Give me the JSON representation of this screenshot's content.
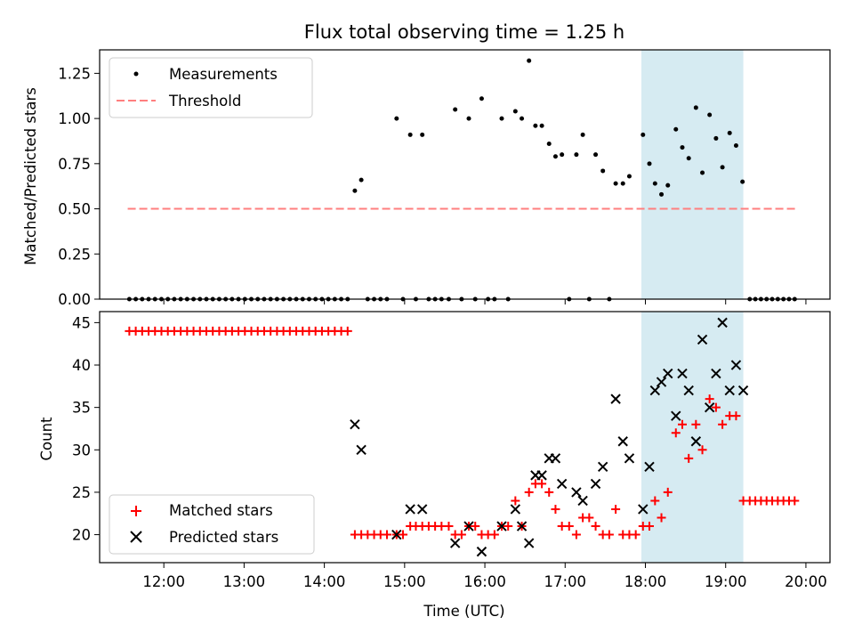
{
  "chart_data": [
    {
      "type": "scatter",
      "title": "Flux total observing time = 1.25 h",
      "xlabel": "",
      "ylabel": "Matched/Predicted stars",
      "ylim": [
        0,
        1.38
      ],
      "yticks": [
        "0.00",
        "0.25",
        "0.50",
        "0.75",
        "1.00",
        "1.25"
      ],
      "shaded_region": {
        "x_start": 17.95,
        "x_end": 19.22,
        "color": "#add8e6"
      },
      "legend": {
        "placement": "upper-left",
        "entries": [
          "Measurements",
          "Threshold"
        ]
      },
      "threshold": {
        "name": "Threshold",
        "x_start": 11.55,
        "x_end": 19.9,
        "value": 0.5,
        "color": "#ff7f7f"
      },
      "series": [
        {
          "name": "Measurements",
          "color": "#000000",
          "points": [
            [
              11.57,
              0
            ],
            [
              11.65,
              0
            ],
            [
              11.73,
              0
            ],
            [
              11.81,
              0
            ],
            [
              11.89,
              0
            ],
            [
              11.97,
              0
            ],
            [
              12.05,
              0
            ],
            [
              12.13,
              0
            ],
            [
              12.21,
              0
            ],
            [
              12.29,
              0
            ],
            [
              12.37,
              0
            ],
            [
              12.45,
              0
            ],
            [
              12.53,
              0
            ],
            [
              12.61,
              0
            ],
            [
              12.69,
              0
            ],
            [
              12.77,
              0
            ],
            [
              12.85,
              0
            ],
            [
              12.93,
              0
            ],
            [
              13.01,
              0
            ],
            [
              13.09,
              0
            ],
            [
              13.17,
              0
            ],
            [
              13.25,
              0
            ],
            [
              13.33,
              0
            ],
            [
              13.41,
              0
            ],
            [
              13.49,
              0
            ],
            [
              13.57,
              0
            ],
            [
              13.65,
              0
            ],
            [
              13.73,
              0
            ],
            [
              13.81,
              0
            ],
            [
              13.89,
              0
            ],
            [
              13.97,
              0
            ],
            [
              14.05,
              0
            ],
            [
              14.13,
              0
            ],
            [
              14.21,
              0
            ],
            [
              14.29,
              0
            ],
            [
              14.38,
              0.6
            ],
            [
              14.46,
              0.66
            ],
            [
              14.54,
              0
            ],
            [
              14.62,
              0
            ],
            [
              14.7,
              0
            ],
            [
              14.78,
              0
            ],
            [
              14.9,
              1.0
            ],
            [
              14.98,
              0
            ],
            [
              15.07,
              0.91
            ],
            [
              15.14,
              0
            ],
            [
              15.22,
              0.91
            ],
            [
              15.3,
              0
            ],
            [
              15.38,
              0
            ],
            [
              15.46,
              0
            ],
            [
              15.55,
              0
            ],
            [
              15.63,
              1.05
            ],
            [
              15.71,
              0
            ],
            [
              15.8,
              1.0
            ],
            [
              15.88,
              0
            ],
            [
              15.96,
              1.11
            ],
            [
              16.04,
              0
            ],
            [
              16.12,
              0
            ],
            [
              16.21,
              1.0
            ],
            [
              16.29,
              0
            ],
            [
              16.38,
              1.04
            ],
            [
              16.46,
              1.0
            ],
            [
              16.55,
              1.32
            ],
            [
              16.63,
              0.96
            ],
            [
              16.71,
              0.96
            ],
            [
              16.8,
              0.86
            ],
            [
              16.88,
              0.79
            ],
            [
              16.96,
              0.8
            ],
            [
              17.05,
              0
            ],
            [
              17.14,
              0.8
            ],
            [
              17.22,
              0.91
            ],
            [
              17.3,
              0
            ],
            [
              17.38,
              0.8
            ],
            [
              17.47,
              0.71
            ],
            [
              17.55,
              0
            ],
            [
              17.63,
              0.64
            ],
            [
              17.72,
              0.64
            ],
            [
              17.8,
              0.68
            ],
            [
              17.97,
              0.91
            ],
            [
              18.05,
              0.75
            ],
            [
              18.12,
              0.64
            ],
            [
              18.2,
              0.58
            ],
            [
              18.28,
              0.63
            ],
            [
              18.38,
              0.94
            ],
            [
              18.46,
              0.84
            ],
            [
              18.54,
              0.78
            ],
            [
              18.63,
              1.06
            ],
            [
              18.71,
              0.7
            ],
            [
              18.8,
              1.02
            ],
            [
              18.88,
              0.89
            ],
            [
              18.96,
              0.73
            ],
            [
              19.05,
              0.92
            ],
            [
              19.13,
              0.85
            ],
            [
              19.21,
              0.65
            ],
            [
              19.3,
              0
            ],
            [
              19.37,
              0
            ],
            [
              19.44,
              0
            ],
            [
              19.51,
              0
            ],
            [
              19.58,
              0
            ],
            [
              19.65,
              0
            ],
            [
              19.72,
              0
            ],
            [
              19.79,
              0
            ],
            [
              19.86,
              0
            ]
          ]
        }
      ]
    },
    {
      "type": "scatter",
      "title": "",
      "xlabel": "Time (UTC)",
      "ylabel": "Count",
      "ylim": [
        16.7,
        46.3
      ],
      "yticks": [
        "20",
        "25",
        "30",
        "35",
        "40",
        "45"
      ],
      "xlim": [
        11.2,
        20.3
      ],
      "xticks": [
        "12:00",
        "13:00",
        "14:00",
        "15:00",
        "16:00",
        "17:00",
        "18:00",
        "19:00",
        "20:00"
      ],
      "shaded_region": {
        "x_start": 17.95,
        "x_end": 19.22,
        "color": "#add8e6"
      },
      "legend": {
        "placement": "lower-left",
        "entries": [
          "Matched stars",
          "Predicted stars"
        ]
      },
      "series": [
        {
          "name": "Matched stars",
          "marker": "plus",
          "color": "#ff0000",
          "points": [
            [
              11.57,
              44
            ],
            [
              11.65,
              44
            ],
            [
              11.73,
              44
            ],
            [
              11.81,
              44
            ],
            [
              11.89,
              44
            ],
            [
              11.97,
              44
            ],
            [
              12.05,
              44
            ],
            [
              12.13,
              44
            ],
            [
              12.21,
              44
            ],
            [
              12.29,
              44
            ],
            [
              12.37,
              44
            ],
            [
              12.45,
              44
            ],
            [
              12.53,
              44
            ],
            [
              12.61,
              44
            ],
            [
              12.69,
              44
            ],
            [
              12.77,
              44
            ],
            [
              12.85,
              44
            ],
            [
              12.93,
              44
            ],
            [
              13.01,
              44
            ],
            [
              13.09,
              44
            ],
            [
              13.17,
              44
            ],
            [
              13.25,
              44
            ],
            [
              13.33,
              44
            ],
            [
              13.41,
              44
            ],
            [
              13.49,
              44
            ],
            [
              13.57,
              44
            ],
            [
              13.65,
              44
            ],
            [
              13.73,
              44
            ],
            [
              13.81,
              44
            ],
            [
              13.89,
              44
            ],
            [
              13.97,
              44
            ],
            [
              14.05,
              44
            ],
            [
              14.13,
              44
            ],
            [
              14.21,
              44
            ],
            [
              14.29,
              44
            ],
            [
              14.38,
              20
            ],
            [
              14.46,
              20
            ],
            [
              14.54,
              20
            ],
            [
              14.62,
              20
            ],
            [
              14.7,
              20
            ],
            [
              14.78,
              20
            ],
            [
              14.9,
              20
            ],
            [
              14.98,
              20
            ],
            [
              15.07,
              21
            ],
            [
              15.14,
              21
            ],
            [
              15.22,
              21
            ],
            [
              15.3,
              21
            ],
            [
              15.38,
              21
            ],
            [
              15.46,
              21
            ],
            [
              15.55,
              21
            ],
            [
              15.63,
              20
            ],
            [
              15.71,
              20
            ],
            [
              15.8,
              21
            ],
            [
              15.88,
              21
            ],
            [
              15.96,
              20
            ],
            [
              16.04,
              20
            ],
            [
              16.12,
              20
            ],
            [
              16.21,
              21
            ],
            [
              16.29,
              21
            ],
            [
              16.38,
              24
            ],
            [
              16.46,
              21
            ],
            [
              16.55,
              25
            ],
            [
              16.63,
              26
            ],
            [
              16.71,
              26
            ],
            [
              16.8,
              25
            ],
            [
              16.88,
              23
            ],
            [
              16.96,
              21
            ],
            [
              17.05,
              21
            ],
            [
              17.14,
              20
            ],
            [
              17.22,
              22
            ],
            [
              17.3,
              22
            ],
            [
              17.38,
              21
            ],
            [
              17.47,
              20
            ],
            [
              17.55,
              20
            ],
            [
              17.63,
              23
            ],
            [
              17.72,
              20
            ],
            [
              17.8,
              20
            ],
            [
              17.88,
              20
            ],
            [
              17.97,
              21
            ],
            [
              18.05,
              21
            ],
            [
              18.12,
              24
            ],
            [
              18.2,
              22
            ],
            [
              18.28,
              25
            ],
            [
              18.38,
              32
            ],
            [
              18.46,
              33
            ],
            [
              18.54,
              29
            ],
            [
              18.63,
              33
            ],
            [
              18.71,
              30
            ],
            [
              18.8,
              36
            ],
            [
              18.88,
              35
            ],
            [
              18.96,
              33
            ],
            [
              19.05,
              34
            ],
            [
              19.13,
              34
            ],
            [
              19.22,
              24
            ],
            [
              19.3,
              24
            ],
            [
              19.37,
              24
            ],
            [
              19.44,
              24
            ],
            [
              19.51,
              24
            ],
            [
              19.58,
              24
            ],
            [
              19.65,
              24
            ],
            [
              19.72,
              24
            ],
            [
              19.79,
              24
            ],
            [
              19.86,
              24
            ]
          ]
        },
        {
          "name": "Predicted stars",
          "marker": "x",
          "color": "#000000",
          "points": [
            [
              14.38,
              33
            ],
            [
              14.46,
              30
            ],
            [
              14.9,
              20
            ],
            [
              15.07,
              23
            ],
            [
              15.22,
              23
            ],
            [
              15.63,
              19
            ],
            [
              15.8,
              21
            ],
            [
              15.96,
              18
            ],
            [
              16.21,
              21
            ],
            [
              16.38,
              23
            ],
            [
              16.46,
              21
            ],
            [
              16.55,
              19
            ],
            [
              16.63,
              27
            ],
            [
              16.71,
              27
            ],
            [
              16.8,
              29
            ],
            [
              16.88,
              29
            ],
            [
              16.96,
              26
            ],
            [
              17.14,
              25
            ],
            [
              17.22,
              24
            ],
            [
              17.38,
              26
            ],
            [
              17.47,
              28
            ],
            [
              17.63,
              36
            ],
            [
              17.72,
              31
            ],
            [
              17.8,
              29
            ],
            [
              17.97,
              23
            ],
            [
              18.05,
              28
            ],
            [
              18.12,
              37
            ],
            [
              18.2,
              38
            ],
            [
              18.28,
              39
            ],
            [
              18.38,
              34
            ],
            [
              18.46,
              39
            ],
            [
              18.54,
              37
            ],
            [
              18.63,
              31
            ],
            [
              18.71,
              43
            ],
            [
              18.8,
              35
            ],
            [
              18.88,
              39
            ],
            [
              18.96,
              45
            ],
            [
              19.05,
              37
            ],
            [
              19.13,
              40
            ],
            [
              19.22,
              37
            ]
          ]
        }
      ]
    }
  ]
}
